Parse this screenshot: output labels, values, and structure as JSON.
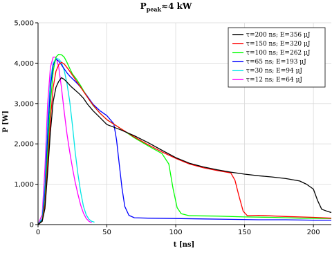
{
  "chart_data": {
    "type": "line",
    "title_main": "P",
    "title_sub": "peak",
    "title_rest": "≈4 kW",
    "xlabel": "t [ns]",
    "ylabel": "P [W]",
    "xlim": [
      0,
      213
    ],
    "ylim": [
      0,
      5000
    ],
    "x_ticks": [
      0,
      50,
      100,
      150,
      200
    ],
    "x_tick_labels": [
      "0",
      "50",
      "100",
      "150",
      "200"
    ],
    "y_ticks": [
      0,
      1000,
      2000,
      3000,
      4000,
      5000
    ],
    "y_tick_labels": [
      "0",
      "1,000",
      "2,000",
      "3,000",
      "4,000",
      "5,000"
    ],
    "grid": true,
    "legend_position": "top-right",
    "series": [
      {
        "name": "τ=200 ns; E=356 μJ",
        "color": "#000000",
        "x": [
          0,
          3,
          5,
          7,
          9,
          11,
          13,
          15,
          17,
          19,
          21,
          24,
          27,
          30,
          33,
          36,
          40,
          45,
          50,
          60,
          70,
          80,
          90,
          100,
          110,
          120,
          130,
          140,
          150,
          160,
          170,
          180,
          190,
          195,
          200,
          203,
          206,
          210,
          213
        ],
        "y": [
          0,
          80,
          400,
          1300,
          2300,
          3050,
          3400,
          3550,
          3640,
          3600,
          3530,
          3420,
          3330,
          3240,
          3130,
          2980,
          2820,
          2650,
          2480,
          2350,
          2200,
          2030,
          1840,
          1660,
          1520,
          1430,
          1360,
          1300,
          1250,
          1210,
          1180,
          1140,
          1080,
          1000,
          880,
          600,
          380,
          330,
          300
        ]
      },
      {
        "name": "τ=150 ns; E=320 μJ",
        "color": "#ff0000",
        "x": [
          0,
          3,
          5,
          7,
          9,
          11,
          13,
          15,
          17,
          19,
          22,
          25,
          28,
          31,
          34,
          37,
          40,
          45,
          50,
          60,
          70,
          80,
          90,
          100,
          110,
          120,
          130,
          140,
          143,
          146,
          149,
          152,
          160,
          180,
          200,
          213
        ],
        "y": [
          0,
          80,
          500,
          1500,
          2600,
          3400,
          3800,
          3960,
          4020,
          3980,
          3850,
          3700,
          3550,
          3400,
          3250,
          3100,
          2960,
          2760,
          2600,
          2380,
          2170,
          1980,
          1800,
          1640,
          1500,
          1410,
          1340,
          1280,
          1100,
          700,
          330,
          220,
          230,
          200,
          180,
          160
        ]
      },
      {
        "name": "τ=100 ns; E=262 μJ",
        "color": "#00ff00",
        "x": [
          0,
          3,
          5,
          7,
          9,
          11,
          13,
          15,
          17,
          19,
          21,
          23,
          25,
          28,
          31,
          34,
          37,
          40,
          45,
          50,
          60,
          70,
          80,
          90,
          95,
          98,
          101,
          104,
          110,
          130,
          150,
          170,
          190,
          213
        ],
        "y": [
          0,
          100,
          600,
          1800,
          3000,
          3800,
          4150,
          4220,
          4210,
          4150,
          4020,
          3870,
          3730,
          3600,
          3440,
          3260,
          3100,
          2950,
          2760,
          2600,
          2380,
          2150,
          1950,
          1760,
          1500,
          900,
          420,
          270,
          220,
          210,
          190,
          180,
          160,
          150
        ]
      },
      {
        "name": "τ=65 ns; E=193 μJ",
        "color": "#0000ff",
        "x": [
          0,
          3,
          5,
          7,
          9,
          11,
          13,
          15,
          17,
          19,
          21,
          23,
          26,
          29,
          32,
          35,
          40,
          45,
          50,
          55,
          57,
          59,
          61,
          63,
          66,
          70,
          80,
          100,
          120,
          140,
          160,
          180,
          200,
          213
        ],
        "y": [
          0,
          120,
          800,
          2200,
          3400,
          3950,
          4100,
          4050,
          3960,
          3860,
          3760,
          3680,
          3580,
          3480,
          3360,
          3220,
          2980,
          2820,
          2700,
          2500,
          2100,
          1500,
          900,
          450,
          230,
          170,
          160,
          150,
          140,
          130,
          120,
          120,
          110,
          110
        ]
      },
      {
        "name": "τ=30 ns; E=94 μJ",
        "color": "#00e5e5",
        "x": [
          0,
          3,
          5,
          7,
          9,
          11,
          13,
          15,
          17,
          19,
          21,
          23,
          25,
          27,
          29,
          31,
          33,
          35,
          37,
          39,
          41
        ],
        "y": [
          0,
          150,
          1000,
          2500,
          3600,
          4000,
          4120,
          4100,
          4020,
          3820,
          3500,
          3050,
          2450,
          1800,
          1250,
          800,
          450,
          240,
          130,
          80,
          60
        ]
      },
      {
        "name": "τ=12 ns; E=64 μJ",
        "color": "#ff00ff",
        "x": [
          0,
          3,
          5,
          7,
          9,
          11,
          13,
          15,
          17,
          19,
          21,
          23,
          25,
          27,
          29,
          31,
          33,
          35,
          37,
          39
        ],
        "y": [
          0,
          250,
          1400,
          3000,
          3900,
          4150,
          4150,
          3900,
          3400,
          2800,
          2250,
          1800,
          1400,
          1050,
          750,
          480,
          280,
          150,
          80,
          50
        ]
      }
    ]
  }
}
